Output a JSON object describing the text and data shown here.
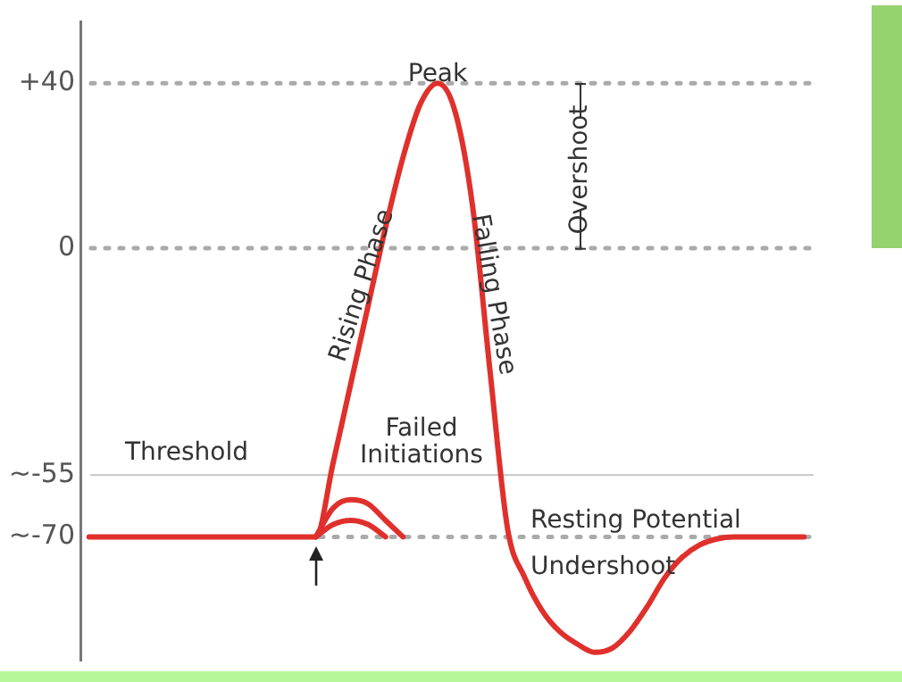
{
  "chart_data": {
    "type": "line",
    "categories": [
      null,
      null,
      null,
      null,
      null,
      null,
      null,
      null,
      null,
      null,
      null,
      null,
      null,
      null,
      null,
      null,
      null,
      null,
      null,
      null,
      null,
      null,
      null,
      null,
      null,
      null,
      null,
      null,
      null,
      null,
      null,
      null,
      null,
      null,
      null,
      null,
      null,
      null,
      null,
      null,
      null,
      null
    ],
    "series": [
      {
        "color": "#e0302c",
        "values": [
          -70,
          -70,
          -70,
          -70,
          -70,
          -70,
          -70,
          -70,
          -70,
          -70,
          -70,
          -70,
          -70,
          -70,
          -52,
          -33,
          -14,
          5,
          22,
          35,
          40,
          33,
          10,
          -30,
          -68,
          -80,
          -88,
          -93,
          -96,
          -98,
          -97,
          -93,
          -87,
          -80,
          -75,
          -72,
          -70.5,
          -70,
          -70,
          -70,
          -70,
          -70
        ]
      },
      {
        "color": "#e0302c",
        "values": [
          null,
          null,
          null,
          null,
          null,
          null,
          null,
          null,
          null,
          null,
          null,
          null,
          null,
          -70,
          -63,
          -61,
          -62,
          -66,
          -70,
          null,
          null,
          null,
          null,
          null,
          null,
          null,
          null,
          null,
          null,
          null,
          null,
          null,
          null,
          null,
          null,
          null,
          null,
          null,
          null,
          null,
          null,
          null
        ]
      },
      {
        "color": "#e0302c",
        "values": [
          null,
          null,
          null,
          null,
          null,
          null,
          null,
          null,
          null,
          null,
          null,
          null,
          null,
          -70,
          -67,
          -66,
          -67,
          -70,
          null,
          null,
          null,
          null,
          null,
          null,
          null,
          null,
          null,
          null,
          null,
          null,
          null,
          null,
          null,
          null,
          null,
          null,
          null,
          null,
          null,
          null,
          null,
          null
        ]
      }
    ],
    "ylim": [
      -100,
      55
    ],
    "yticks": [
      {
        "value": 40,
        "label": "+40"
      },
      0,
      {
        "value": -55,
        "label": "~-55"
      },
      {
        "value": -70,
        "label": "~-70"
      }
    ],
    "ref_lines": [
      {
        "axis": "y",
        "value": 40,
        "color": "#aaaaaa",
        "line_style": "dotted"
      },
      {
        "axis": "y",
        "value": 0,
        "color": "#aaaaaa",
        "line_style": "dotted"
      },
      {
        "axis": "y",
        "value": -55,
        "label": "Threshold",
        "color": "#cccccc",
        "line_style": "solid"
      },
      {
        "axis": "y",
        "value": -70,
        "label": "Resting Potential",
        "color": "#aaaaaa",
        "line_style": "dotted"
      }
    ],
    "annotations": [
      "Peak",
      "Rising Phase",
      "Falling Phase",
      "Overshoot",
      "Failed Initiations",
      "Undershoot"
    ],
    "marker": "none",
    "line_style": "solid",
    "tick_labels": "y"
  }
}
